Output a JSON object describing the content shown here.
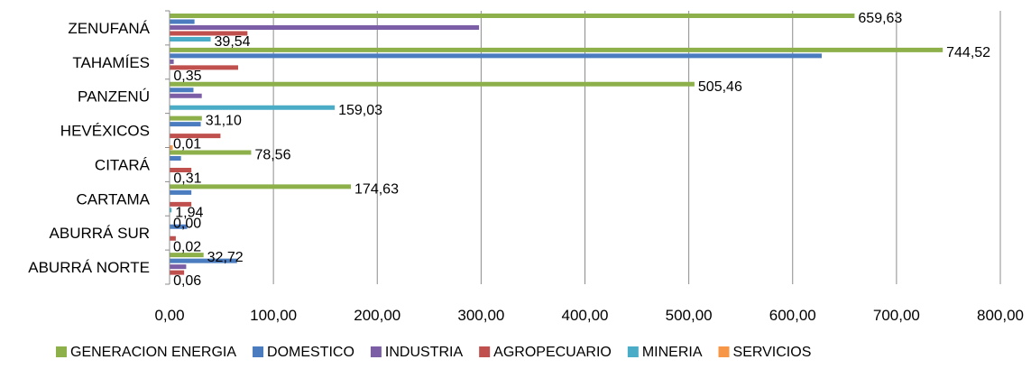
{
  "chart_data": {
    "type": "bar",
    "orientation": "horizontal",
    "categories": [
      "ZENUFANÁ",
      "TAHAMÍES",
      "PANZENÚ",
      "HEVÉXICOS",
      "CITARÁ",
      "CARTAMA",
      "ABURRÁ SUR",
      "ABURRÁ NORTE"
    ],
    "series": [
      {
        "name": "GENERACION ENERGIA",
        "color": "#8db04a",
        "values": [
          659.63,
          744.52,
          505.46,
          31.1,
          78.56,
          174.63,
          0.0,
          32.72
        ]
      },
      {
        "name": "DOMESTICO",
        "color": "#4a7cbf",
        "values": [
          24,
          628,
          23,
          30,
          11,
          21,
          17,
          65
        ]
      },
      {
        "name": "INDUSTRIA",
        "color": "#7b5ea6",
        "values": [
          298,
          4,
          31,
          0,
          0,
          0,
          0,
          16
        ]
      },
      {
        "name": "AGROPECUARIO",
        "color": "#c0504d",
        "values": [
          75,
          66,
          0,
          49,
          21,
          21,
          6,
          14
        ]
      },
      {
        "name": "MINERIA",
        "color": "#4aacc6",
        "values": [
          39.54,
          0.35,
          159.03,
          0.01,
          0.31,
          1.94,
          0.02,
          0.06
        ]
      },
      {
        "name": "SERVICIOS",
        "color": "#f79646",
        "values": [
          0,
          0,
          0,
          3,
          0,
          0,
          0,
          0
        ]
      }
    ],
    "data_labels": [
      {
        "category": "ZENUFANÁ",
        "series": "GENERACION ENERGIA",
        "text": "659,63"
      },
      {
        "category": "ZENUFANÁ",
        "series": "MINERIA",
        "text": "39,54"
      },
      {
        "category": "TAHAMÍES",
        "series": "GENERACION ENERGIA",
        "text": "744,52"
      },
      {
        "category": "TAHAMÍES",
        "series": "MINERIA",
        "text": "0,35"
      },
      {
        "category": "PANZENÚ",
        "series": "GENERACION ENERGIA",
        "text": "505,46"
      },
      {
        "category": "PANZENÚ",
        "series": "MINERIA",
        "text": "159,03"
      },
      {
        "category": "HEVÉXICOS",
        "series": "GENERACION ENERGIA",
        "text": "31,10"
      },
      {
        "category": "HEVÉXICOS",
        "series": "MINERIA",
        "text": "0,01"
      },
      {
        "category": "CITARÁ",
        "series": "GENERACION ENERGIA",
        "text": "78,56"
      },
      {
        "category": "CITARÁ",
        "series": "MINERIA",
        "text": "0,31"
      },
      {
        "category": "CARTAMA",
        "series": "GENERACION ENERGIA",
        "text": "174,63"
      },
      {
        "category": "CARTAMA",
        "series": "MINERIA",
        "text": "1,94"
      },
      {
        "category": "ABURRÁ SUR",
        "series": "GENERACION ENERGIA",
        "text": "0,00"
      },
      {
        "category": "ABURRÁ SUR",
        "series": "MINERIA",
        "text": "0,02"
      },
      {
        "category": "ABURRÁ NORTE",
        "series": "GENERACION ENERGIA",
        "text": "32,72"
      },
      {
        "category": "ABURRÁ NORTE",
        "series": "MINERIA",
        "text": "0,06"
      }
    ],
    "x_ticks": [
      "0,00",
      "100,00",
      "200,00",
      "300,00",
      "400,00",
      "500,00",
      "600,00",
      "700,00",
      "800,00"
    ],
    "xlim": [
      0,
      800
    ],
    "grid": "vertical",
    "legend": "bottom",
    "title": "",
    "xlabel": "",
    "ylabel": ""
  }
}
